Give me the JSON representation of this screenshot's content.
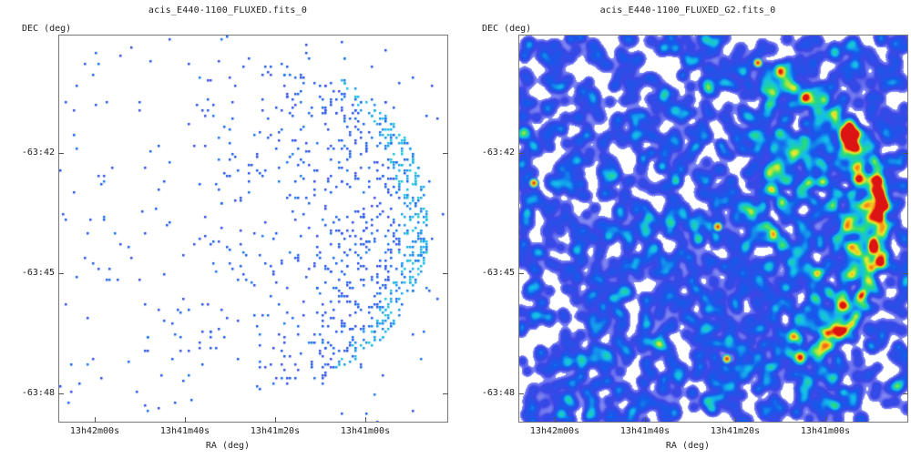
{
  "chart_data": [
    {
      "type": "heatmap",
      "title": "acis_E440-1100_FLUXED.fits_0",
      "xlabel": "RA (deg)",
      "ylabel": "DEC (deg)",
      "x_ticks": [
        "13h42m00s",
        "13h41m40s",
        "13h41m20s",
        "13h41m00s"
      ],
      "y_ticks": [
        "-63:42",
        "-63:45",
        "-63:48"
      ],
      "colormap": "white-blue-cyan-green-yellow-red",
      "smoothing": "none"
    },
    {
      "type": "heatmap",
      "title": "acis_E440-1100_FLUXED_G2.fits_0",
      "xlabel": "RA (deg)",
      "ylabel": "DEC (deg)",
      "x_ticks": [
        "13h42m00s",
        "13h41m40s",
        "13h41m20s",
        "13h41m00s"
      ],
      "y_ticks": [
        "-63:42",
        "-63:45",
        "-63:48"
      ],
      "colormap": "white-blue-cyan-green-yellow-red",
      "smoothing": "gaussian"
    }
  ]
}
